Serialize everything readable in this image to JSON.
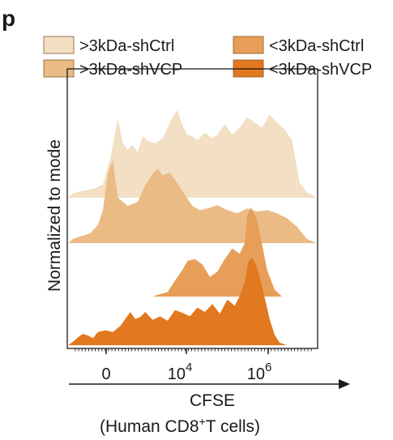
{
  "panel_label": "p",
  "chart_data": {
    "type": "area",
    "title": "",
    "xlabel": "CFSE",
    "xlabel_sub_prefix": "(Human CD8",
    "xlabel_sub_sup": "+",
    "xlabel_sub_suffix": "T cells)",
    "ylabel": "Normalized to mode",
    "xscale": "biexponential",
    "xlim": [
      -1000,
      30000000
    ],
    "xticks": [
      {
        "label": "0"
      },
      {
        "label": "10",
        "sup": "4"
      },
      {
        "label": "10",
        "sup": "6"
      }
    ],
    "legend": {
      "placement": "top",
      "entries": [
        ">3kDa-shCtrl",
        "<3kDa-shCtrl",
        ">3kDa-shVCP",
        "<3kDa-shVCP"
      ]
    },
    "series": [
      {
        "name": ">3kDa-shCtrl",
        "color": "#f2dfc4",
        "offset": 3,
        "x": [
          0.0,
          0.02,
          0.06,
          0.1,
          0.14,
          0.17,
          0.2,
          0.22,
          0.24,
          0.26,
          0.28,
          0.3,
          0.32,
          0.35,
          0.38,
          0.4,
          0.42,
          0.44,
          0.46,
          0.48,
          0.5,
          0.52,
          0.55,
          0.58,
          0.6,
          0.63,
          0.66,
          0.69,
          0.72,
          0.75,
          0.78,
          0.81,
          0.84,
          0.87,
          0.9,
          0.93,
          0.96,
          1.0
        ],
        "y": [
          0.0,
          0.05,
          0.08,
          0.1,
          0.15,
          0.45,
          0.9,
          0.62,
          0.55,
          0.6,
          0.52,
          0.7,
          0.65,
          0.62,
          0.68,
          0.8,
          0.92,
          1.0,
          0.82,
          0.72,
          0.7,
          0.66,
          0.74,
          0.68,
          0.72,
          0.84,
          0.72,
          0.8,
          0.92,
          0.86,
          0.8,
          0.95,
          0.86,
          0.78,
          0.66,
          0.18,
          0.06,
          0.0
        ]
      },
      {
        "name": ">3kDa-shVCP",
        "color": "#ebbb85",
        "offset": 2,
        "x": [
          0.0,
          0.02,
          0.05,
          0.09,
          0.12,
          0.14,
          0.16,
          0.18,
          0.2,
          0.24,
          0.28,
          0.31,
          0.34,
          0.36,
          0.38,
          0.41,
          0.44,
          0.47,
          0.5,
          0.53,
          0.56,
          0.6,
          0.64,
          0.68,
          0.72,
          0.76,
          0.8,
          0.84,
          0.88,
          0.92,
          0.96,
          1.0
        ],
        "y": [
          0.0,
          0.05,
          0.08,
          0.12,
          0.22,
          0.4,
          0.85,
          1.0,
          0.55,
          0.45,
          0.5,
          0.7,
          0.84,
          0.9,
          0.82,
          0.85,
          0.72,
          0.58,
          0.45,
          0.4,
          0.42,
          0.46,
          0.4,
          0.36,
          0.42,
          0.38,
          0.4,
          0.36,
          0.3,
          0.2,
          0.05,
          0.0
        ]
      },
      {
        "name": "<3kDa-shCtrl",
        "color": "#e69e58",
        "offset": 1,
        "x": [
          0.34,
          0.36,
          0.4,
          0.43,
          0.46,
          0.48,
          0.51,
          0.54,
          0.57,
          0.6,
          0.63,
          0.66,
          0.69,
          0.71,
          0.72,
          0.735,
          0.745,
          0.76,
          0.78,
          0.8,
          0.83,
          0.86
        ],
        "y": [
          0.0,
          0.02,
          0.05,
          0.18,
          0.3,
          0.4,
          0.42,
          0.36,
          0.22,
          0.28,
          0.42,
          0.54,
          0.48,
          0.6,
          0.9,
          1.0,
          0.95,
          0.86,
          0.58,
          0.3,
          0.08,
          0.0
        ]
      },
      {
        "name": "<3kDa-shVCP",
        "color": "#e2781f",
        "offset": 0,
        "x": [
          0.0,
          0.02,
          0.04,
          0.06,
          0.08,
          0.1,
          0.12,
          0.15,
          0.18,
          0.21,
          0.23,
          0.25,
          0.27,
          0.29,
          0.31,
          0.34,
          0.37,
          0.4,
          0.43,
          0.46,
          0.49,
          0.52,
          0.55,
          0.58,
          0.61,
          0.64,
          0.67,
          0.69,
          0.71,
          0.725,
          0.74,
          0.755,
          0.77,
          0.79,
          0.81,
          0.83,
          0.85,
          0.88
        ],
        "y": [
          0.0,
          0.04,
          0.09,
          0.13,
          0.11,
          0.08,
          0.15,
          0.17,
          0.15,
          0.22,
          0.3,
          0.38,
          0.3,
          0.32,
          0.38,
          0.29,
          0.33,
          0.28,
          0.4,
          0.37,
          0.33,
          0.43,
          0.38,
          0.47,
          0.36,
          0.52,
          0.45,
          0.56,
          0.72,
          0.96,
          1.0,
          0.92,
          0.78,
          0.55,
          0.3,
          0.12,
          0.03,
          0.0
        ]
      }
    ]
  }
}
